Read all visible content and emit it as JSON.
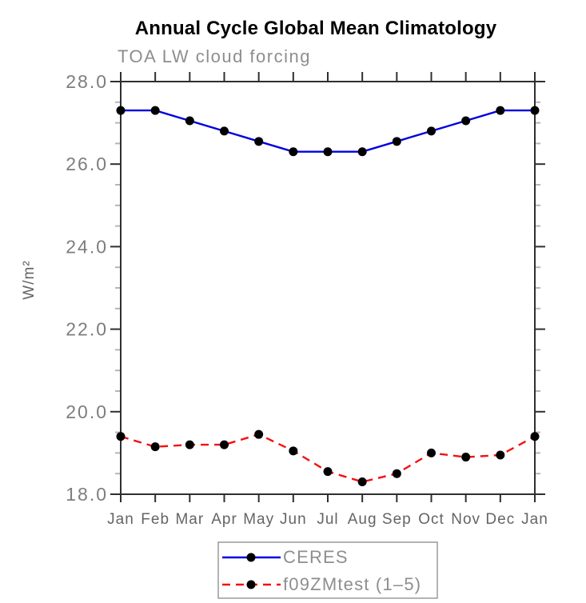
{
  "title": "Annual Cycle Global Mean Climatology",
  "subtitle": "TOA LW cloud forcing",
  "colors": {
    "ceres_line": "#0000e0",
    "model_line": "#f31111",
    "marker": "#000000",
    "axis": "#2f2f2f",
    "minor_tick": "#b5b5b5",
    "y_tick_label": "#7d7d7d",
    "x_tick_label": "#646464",
    "subtitle_text": "#8e8e8e",
    "legend_text": "#8e8e8e",
    "legend_border": "#9a9a9a",
    "title_text": "#000000"
  },
  "chart_data": {
    "type": "line",
    "title": "Annual Cycle Global Mean Climatology",
    "subtitle": "TOA LW cloud forcing",
    "xlabel": "",
    "ylabel": "W/m²",
    "x_tick_labels": [
      "Jan",
      "Feb",
      "Mar",
      "Apr",
      "May",
      "Jun",
      "Jul",
      "Aug",
      "Sep",
      "Oct",
      "Nov",
      "Dec",
      "Jan"
    ],
    "ylim": [
      18.0,
      28.0
    ],
    "y_major_ticks": [
      18.0,
      20.0,
      22.0,
      24.0,
      26.0,
      28.0
    ],
    "y_minor_step": 0.5,
    "grid": false,
    "legend_position": "bottom-center",
    "series": [
      {
        "name": "CERES",
        "line_style": "solid",
        "color": "#0000e0",
        "marker": "black-dot",
        "values": [
          27.3,
          27.3,
          27.05,
          26.8,
          26.55,
          26.3,
          26.3,
          26.3,
          26.55,
          26.8,
          27.05,
          27.3,
          27.3
        ]
      },
      {
        "name": "f09ZMtest (1–5)",
        "line_style": "dashed",
        "color": "#f31111",
        "marker": "black-dot",
        "values": [
          19.4,
          19.15,
          19.2,
          19.2,
          19.45,
          19.05,
          18.55,
          18.3,
          18.5,
          19.0,
          18.9,
          18.95,
          19.4
        ]
      }
    ]
  }
}
